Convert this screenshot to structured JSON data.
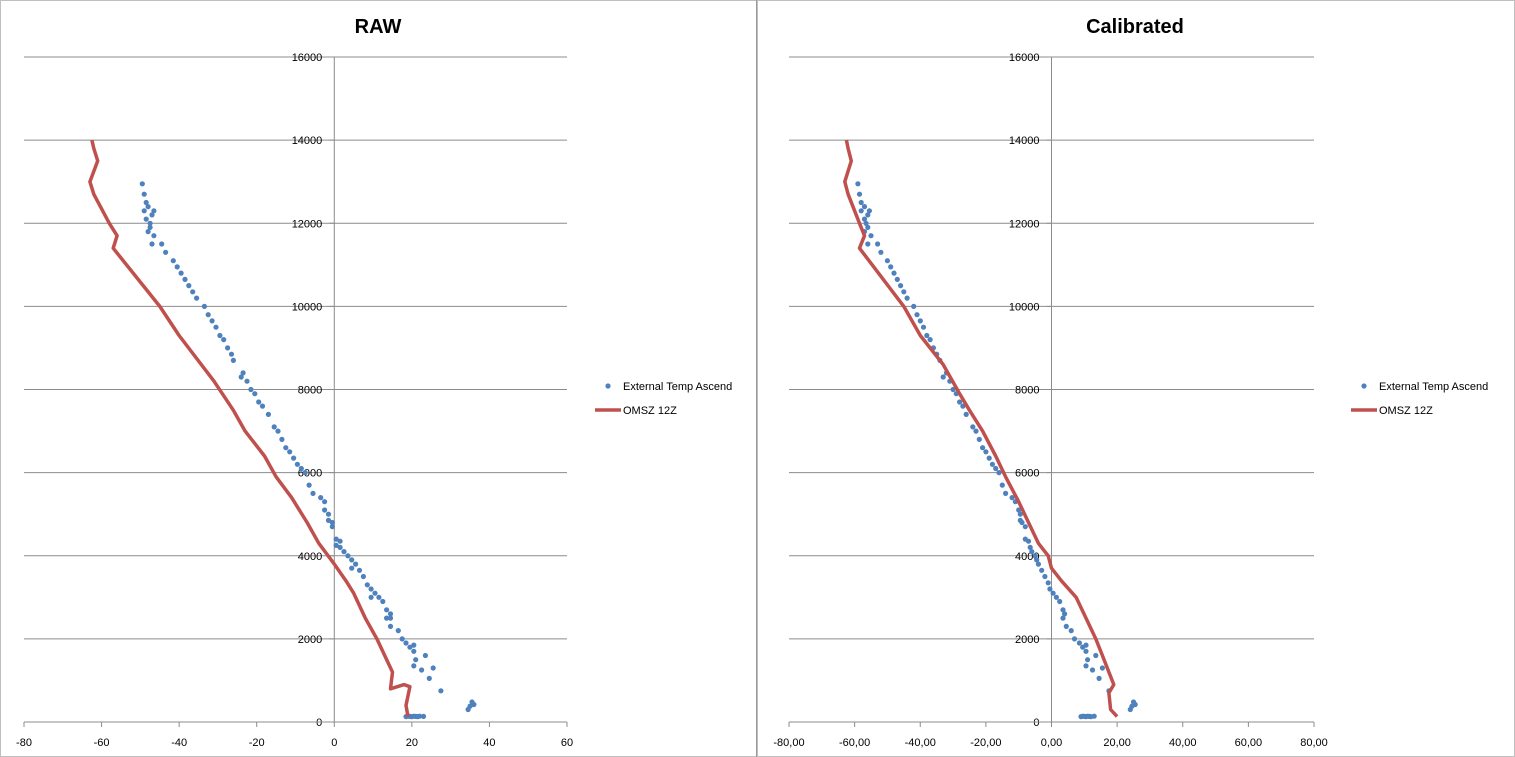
{
  "chart_data": [
    {
      "type": "scatter",
      "title": "RAW",
      "xlabel": "",
      "ylabel": "",
      "xlim": [
        -80,
        60
      ],
      "ylim": [
        0,
        16000
      ],
      "x_ticks": [
        "-80",
        "-60",
        "-40",
        "-20",
        "0",
        "20",
        "40",
        "60"
      ],
      "y_ticks": [
        "0",
        "2000",
        "4000",
        "6000",
        "8000",
        "10000",
        "12000",
        "14000",
        "16000"
      ],
      "grid": "horizontal",
      "legend_position": "right",
      "series": [
        {
          "name": "External Temp Ascend",
          "kind": "scatter",
          "color": "#4f81bd",
          "points": [
            [
              18.5,
              130
            ],
            [
              19,
              140
            ],
            [
              19.5,
              135
            ],
            [
              20,
              130
            ],
            [
              20.5,
              140
            ],
            [
              21,
              135
            ],
            [
              21.5,
              130
            ],
            [
              22,
              140
            ],
            [
              23,
              135
            ],
            [
              35.5,
              480
            ],
            [
              36,
              420
            ],
            [
              34.5,
              300
            ],
            [
              35,
              380
            ],
            [
              27.5,
              750
            ],
            [
              24.5,
              1050
            ],
            [
              25.5,
              1300
            ],
            [
              22.5,
              1250
            ],
            [
              23.5,
              1600
            ],
            [
              20.5,
              1850
            ],
            [
              20.5,
              1700
            ],
            [
              21,
              1500
            ],
            [
              20.5,
              1350
            ],
            [
              19.5,
              1800
            ],
            [
              18.5,
              1900
            ],
            [
              17.5,
              2000
            ],
            [
              16.5,
              2200
            ],
            [
              14.5,
              2300
            ],
            [
              13.5,
              2500
            ],
            [
              14.5,
              2600
            ],
            [
              14.5,
              2500
            ],
            [
              13.5,
              2700
            ],
            [
              12.5,
              2900
            ],
            [
              11.5,
              3000
            ],
            [
              10.5,
              3100
            ],
            [
              9.5,
              3200
            ],
            [
              9.5,
              3000
            ],
            [
              8.5,
              3300
            ],
            [
              7.5,
              3500
            ],
            [
              6.5,
              3650
            ],
            [
              5.5,
              3800
            ],
            [
              4.5,
              3900
            ],
            [
              4.5,
              3700
            ],
            [
              3.5,
              4000
            ],
            [
              2.5,
              4100
            ],
            [
              1.5,
              4200
            ],
            [
              1.5,
              4350
            ],
            [
              0.5,
              4400
            ],
            [
              0.5,
              4250
            ],
            [
              -0.5,
              4700
            ],
            [
              -0.5,
              4800
            ],
            [
              -1.5,
              4850
            ],
            [
              -1.5,
              5000
            ],
            [
              -2.5,
              5100
            ],
            [
              -2.5,
              5300
            ],
            [
              -3.5,
              5400
            ],
            [
              -5.5,
              5500
            ],
            [
              -6.5,
              5700
            ],
            [
              -7.5,
              6000
            ],
            [
              -8.5,
              6100
            ],
            [
              -9.5,
              6200
            ],
            [
              -10.5,
              6350
            ],
            [
              -11.5,
              6500
            ],
            [
              -12.5,
              6600
            ],
            [
              -13.5,
              6800
            ],
            [
              -14.5,
              7000
            ],
            [
              -15.5,
              7100
            ],
            [
              -17,
              7400
            ],
            [
              -18.5,
              7600
            ],
            [
              -19.5,
              7700
            ],
            [
              -20.5,
              7900
            ],
            [
              -21.5,
              8000
            ],
            [
              -22.5,
              8200
            ],
            [
              -23.5,
              8400
            ],
            [
              -24,
              8300
            ],
            [
              -26,
              8700
            ],
            [
              -26.5,
              8850
            ],
            [
              -27.5,
              9000
            ],
            [
              -28.5,
              9200
            ],
            [
              -29.5,
              9300
            ],
            [
              -30.5,
              9500
            ],
            [
              -31.5,
              9650
            ],
            [
              -32.5,
              9800
            ],
            [
              -33.5,
              10000
            ],
            [
              -35.5,
              10200
            ],
            [
              -36.5,
              10350
            ],
            [
              -37.5,
              10500
            ],
            [
              -38.5,
              10650
            ],
            [
              -39.5,
              10800
            ],
            [
              -40.5,
              10950
            ],
            [
              -41.5,
              11100
            ],
            [
              -43.5,
              11300
            ],
            [
              -44.5,
              11500
            ],
            [
              -46.5,
              11700
            ],
            [
              -47.5,
              11900
            ],
            [
              -48.5,
              12100
            ],
            [
              -49,
              12300
            ],
            [
              -48,
              12400
            ],
            [
              -48.5,
              12500
            ],
            [
              -49,
              12700
            ],
            [
              -49.5,
              12950
            ],
            [
              -47.5,
              12000
            ],
            [
              -47,
              11500
            ],
            [
              -48,
              11800
            ],
            [
              -46.5,
              12300
            ],
            [
              -47,
              12200
            ]
          ]
        },
        {
          "name": "OMSZ 12Z",
          "kind": "line",
          "color": "#c0504d",
          "points": [
            [
              19,
              130
            ],
            [
              18.5,
              400
            ],
            [
              19.5,
              850
            ],
            [
              18,
              900
            ],
            [
              14.5,
              800
            ],
            [
              15,
              1200
            ],
            [
              13,
              1600
            ],
            [
              11,
              2000
            ],
            [
              8,
              2500
            ],
            [
              5,
              3100
            ],
            [
              3,
              3400
            ],
            [
              0,
              3800
            ],
            [
              -4,
              4300
            ],
            [
              -7,
              4800
            ],
            [
              -11,
              5400
            ],
            [
              -15,
              5900
            ],
            [
              -18,
              6400
            ],
            [
              -23,
              7000
            ],
            [
              -26,
              7500
            ],
            [
              -31,
              8200
            ],
            [
              -40,
              9300
            ],
            [
              -45,
              10000
            ],
            [
              -57,
              11400
            ],
            [
              -56,
              11700
            ],
            [
              -58,
              12000
            ],
            [
              -62,
              12700
            ],
            [
              -63,
              13000
            ],
            [
              -61,
              13500
            ],
            [
              -62,
              13800
            ],
            [
              -62.5,
              14000
            ]
          ]
        }
      ]
    },
    {
      "type": "scatter",
      "title": "Calibrated",
      "xlabel": "",
      "ylabel": "",
      "xlim": [
        -80,
        80
      ],
      "ylim": [
        0,
        16000
      ],
      "x_ticks": [
        "-80,00",
        "-60,00",
        "-40,00",
        "-20,00",
        "0,00",
        "20,00",
        "40,00",
        "60,00",
        "80,00"
      ],
      "y_ticks": [
        "0",
        "2000",
        "4000",
        "6000",
        "8000",
        "10000",
        "12000",
        "14000",
        "16000"
      ],
      "grid": "horizontal",
      "legend_position": "right",
      "series": [
        {
          "name": "External Temp Ascend",
          "kind": "scatter",
          "color": "#4f81bd",
          "points": [
            [
              9,
              130
            ],
            [
              9.5,
              140
            ],
            [
              10,
              135
            ],
            [
              10.5,
              130
            ],
            [
              11,
              140
            ],
            [
              11.5,
              135
            ],
            [
              12,
              130
            ],
            [
              13,
              140
            ],
            [
              25,
              480
            ],
            [
              25.5,
              420
            ],
            [
              24,
              300
            ],
            [
              24.5,
              380
            ],
            [
              17.5,
              750
            ],
            [
              14.5,
              1050
            ],
            [
              15.5,
              1300
            ],
            [
              12.5,
              1250
            ],
            [
              13.5,
              1600
            ],
            [
              10.5,
              1850
            ],
            [
              10.5,
              1700
            ],
            [
              11,
              1500
            ],
            [
              10.5,
              1350
            ],
            [
              9.5,
              1800
            ],
            [
              8.5,
              1900
            ],
            [
              7,
              2000
            ],
            [
              6,
              2200
            ],
            [
              4.5,
              2300
            ],
            [
              3.5,
              2500
            ],
            [
              4,
              2600
            ],
            [
              3.5,
              2700
            ],
            [
              2.5,
              2900
            ],
            [
              1.5,
              3000
            ],
            [
              0.5,
              3100
            ],
            [
              -0.5,
              3200
            ],
            [
              -1,
              3350
            ],
            [
              -2,
              3500
            ],
            [
              -3,
              3650
            ],
            [
              -4,
              3800
            ],
            [
              -4.5,
              3900
            ],
            [
              -5,
              4000
            ],
            [
              -6,
              4100
            ],
            [
              -6.5,
              4200
            ],
            [
              -7,
              4350
            ],
            [
              -8,
              4400
            ],
            [
              -8,
              4700
            ],
            [
              -9,
              4800
            ],
            [
              -9.5,
              4850
            ],
            [
              -9.5,
              5000
            ],
            [
              -10,
              5100
            ],
            [
              -11,
              5300
            ],
            [
              -12,
              5400
            ],
            [
              -14,
              5500
            ],
            [
              -15,
              5700
            ],
            [
              -16,
              6000
            ],
            [
              -17,
              6100
            ],
            [
              -18,
              6200
            ],
            [
              -19,
              6350
            ],
            [
              -20,
              6500
            ],
            [
              -21,
              6600
            ],
            [
              -22,
              6800
            ],
            [
              -23,
              7000
            ],
            [
              -24,
              7100
            ],
            [
              -26,
              7400
            ],
            [
              -27,
              7600
            ],
            [
              -28,
              7700
            ],
            [
              -29,
              7900
            ],
            [
              -30,
              8000
            ],
            [
              -31,
              8200
            ],
            [
              -32,
              8400
            ],
            [
              -33,
              8300
            ],
            [
              -34,
              8700
            ],
            [
              -35,
              8850
            ],
            [
              -36,
              9000
            ],
            [
              -37,
              9200
            ],
            [
              -38,
              9300
            ],
            [
              -39,
              9500
            ],
            [
              -40,
              9650
            ],
            [
              -41,
              9800
            ],
            [
              -42,
              10000
            ],
            [
              -44,
              10200
            ],
            [
              -45,
              10350
            ],
            [
              -46,
              10500
            ],
            [
              -47,
              10650
            ],
            [
              -48,
              10800
            ],
            [
              -49,
              10950
            ],
            [
              -50,
              11100
            ],
            [
              -52,
              11300
            ],
            [
              -53,
              11500
            ],
            [
              -55,
              11700
            ],
            [
              -56,
              11900
            ],
            [
              -57,
              12100
            ],
            [
              -58,
              12300
            ],
            [
              -57,
              12400
            ],
            [
              -58,
              12500
            ],
            [
              -58.5,
              12700
            ],
            [
              -59,
              12950
            ],
            [
              -56.5,
              12000
            ],
            [
              -56,
              11500
            ],
            [
              -57,
              11800
            ],
            [
              -55.5,
              12300
            ],
            [
              -56,
              12200
            ]
          ]
        },
        {
          "name": "OMSZ 12Z",
          "kind": "line",
          "color": "#c0504d",
          "points": [
            [
              20,
              130
            ],
            [
              18,
              300
            ],
            [
              17.5,
              700
            ],
            [
              19,
              900
            ],
            [
              17.5,
              1200
            ],
            [
              15.5,
              1600
            ],
            [
              13.5,
              2000
            ],
            [
              10.5,
              2500
            ],
            [
              7.5,
              3000
            ],
            [
              3,
              3400
            ],
            [
              0,
              3700
            ],
            [
              -1,
              4000
            ],
            [
              -4,
              4300
            ],
            [
              -7,
              4800
            ],
            [
              -10,
              5300
            ],
            [
              -14,
              5900
            ],
            [
              -17,
              6400
            ],
            [
              -21,
              7000
            ],
            [
              -25,
              7500
            ],
            [
              -28,
              7900
            ],
            [
              -33,
              8600
            ],
            [
              -40,
              9300
            ],
            [
              -45,
              10000
            ],
            [
              -58.5,
              11400
            ],
            [
              -57,
              11700
            ],
            [
              -58.5,
              12000
            ],
            [
              -62,
              12700
            ],
            [
              -63,
              13000
            ],
            [
              -61,
              13500
            ],
            [
              -62,
              13800
            ],
            [
              -62.5,
              14000
            ]
          ]
        }
      ]
    }
  ]
}
